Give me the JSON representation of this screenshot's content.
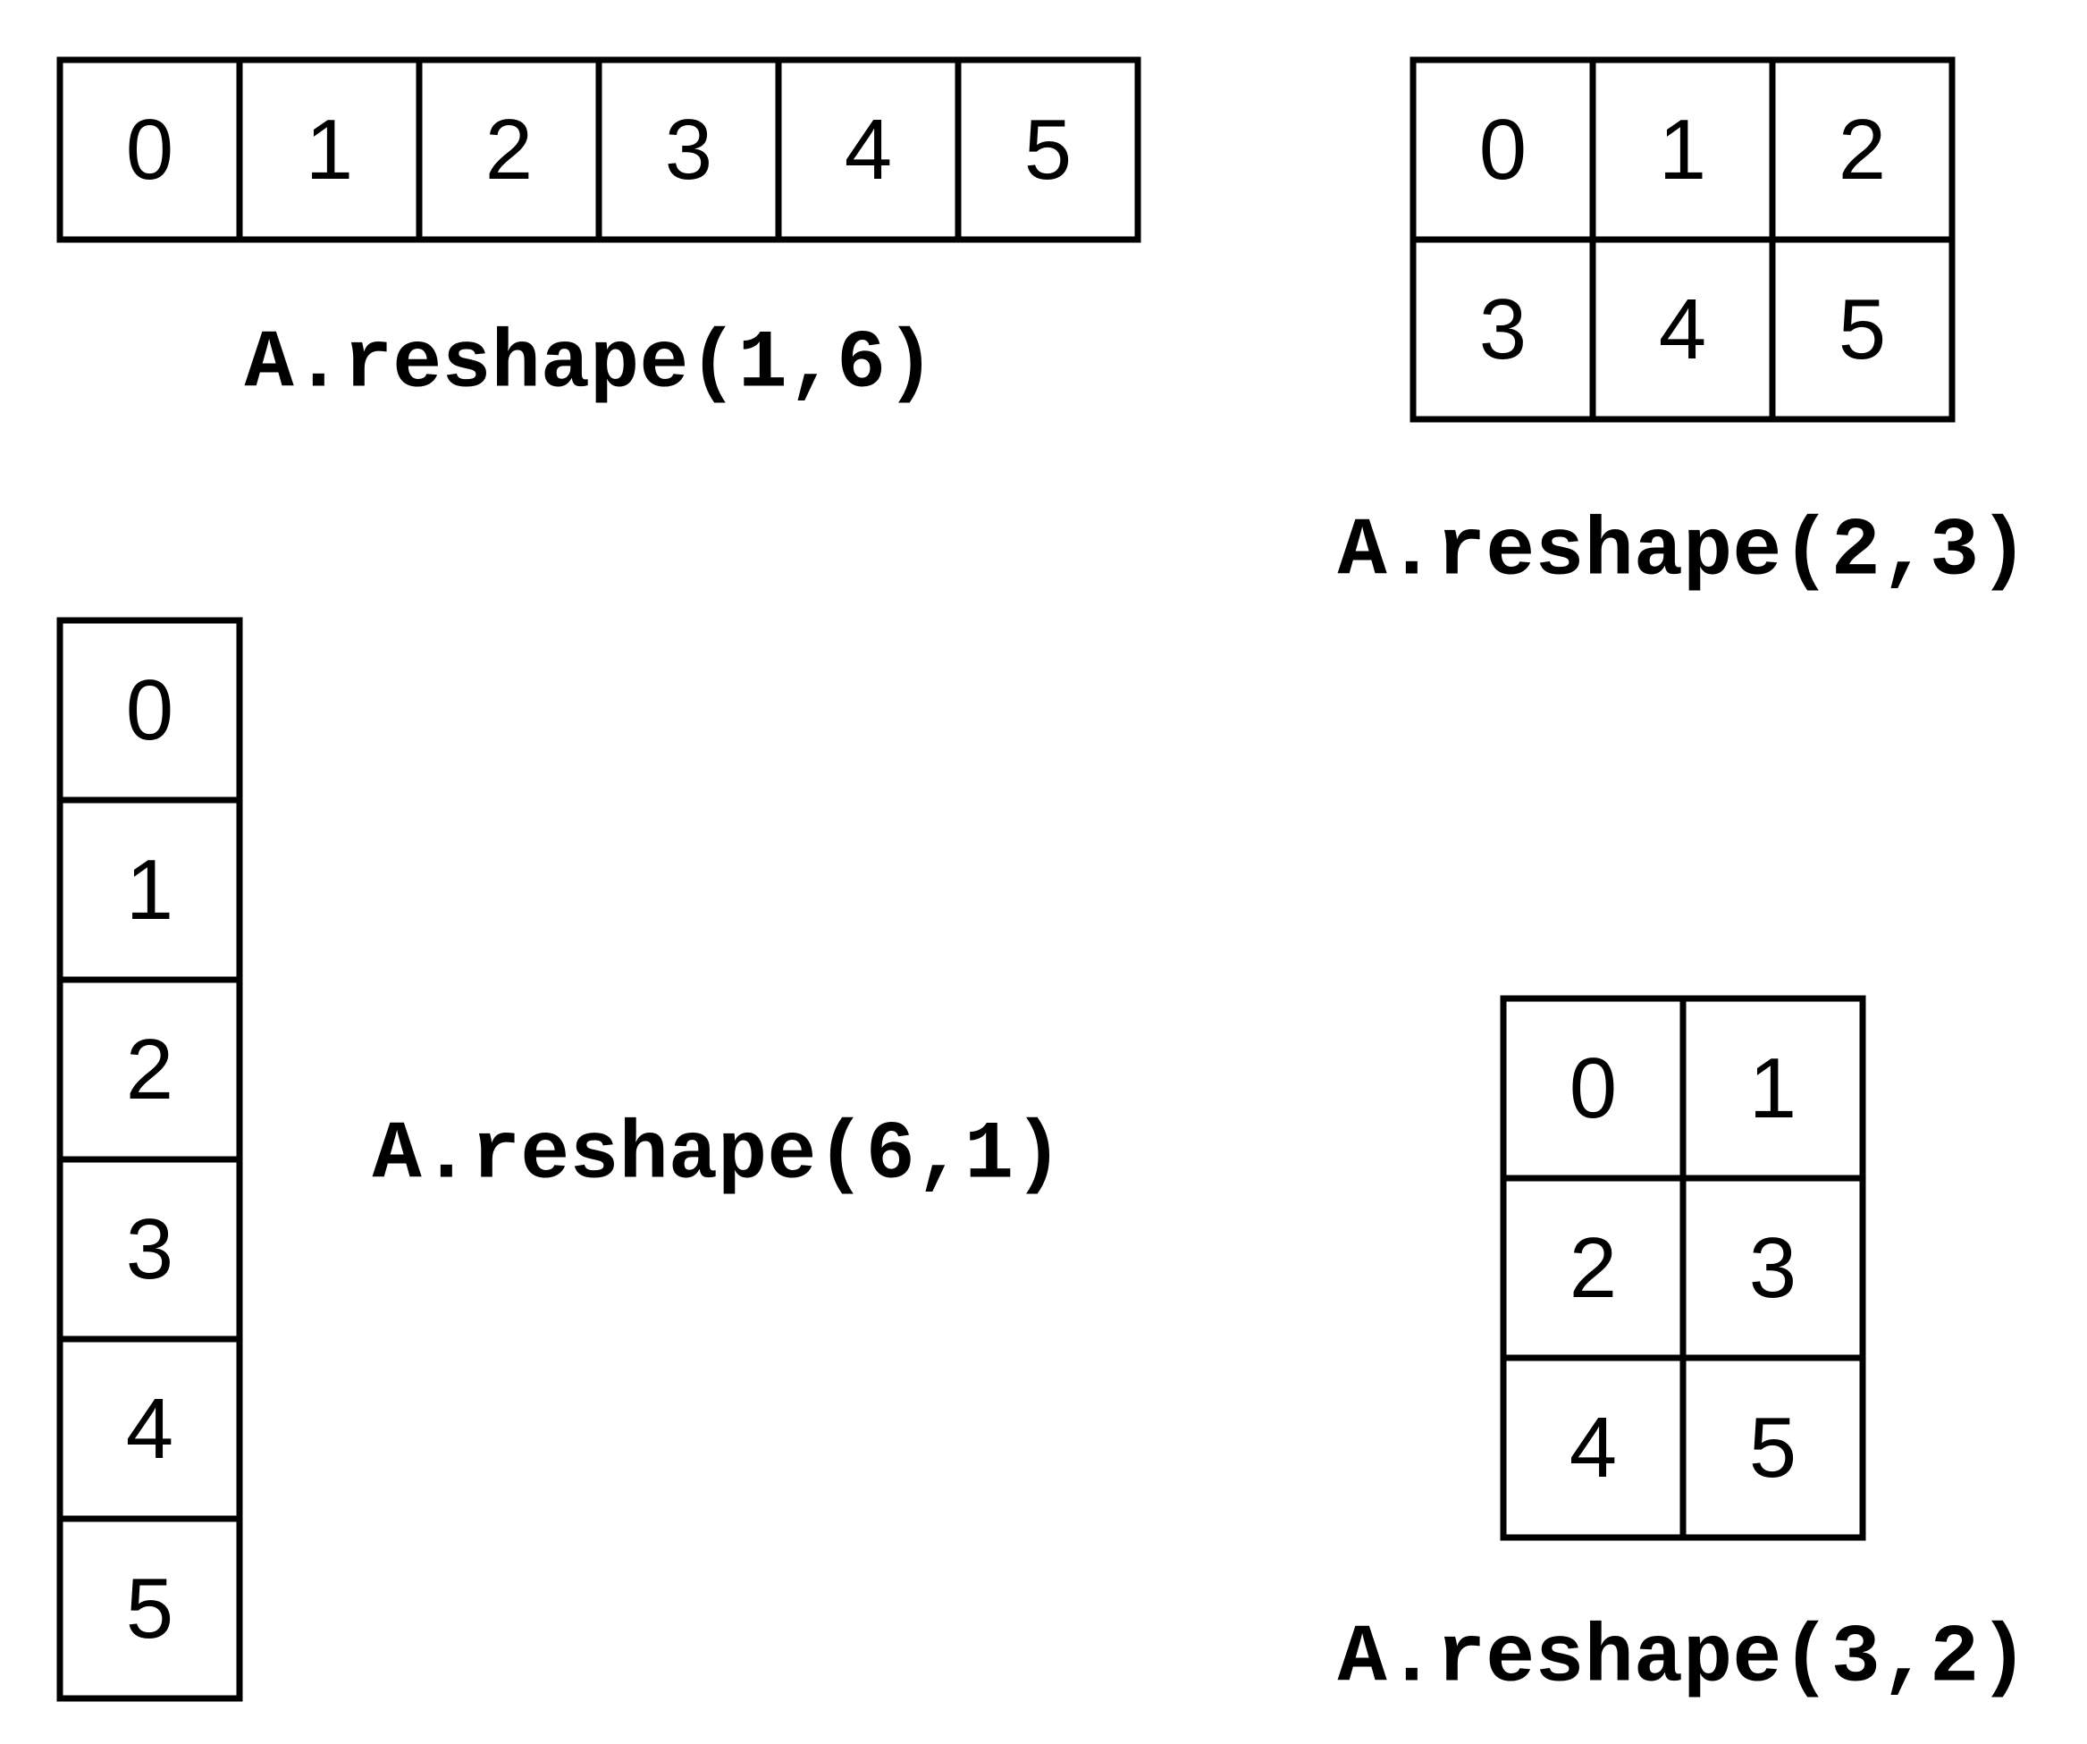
{
  "colors": {
    "background": "#ffffff",
    "stroke": "#000000",
    "text": "#000000"
  },
  "grids": [
    {
      "id": "reshape-1-6",
      "rows": 1,
      "cols": 6,
      "values": [
        "0",
        "1",
        "2",
        "3",
        "4",
        "5"
      ],
      "caption": "A.reshape(1,6)"
    },
    {
      "id": "reshape-2-3",
      "rows": 2,
      "cols": 3,
      "values": [
        "0",
        "1",
        "2",
        "3",
        "4",
        "5"
      ],
      "caption": "A.reshape(2,3)"
    },
    {
      "id": "reshape-6-1",
      "rows": 6,
      "cols": 1,
      "values": [
        "0",
        "1",
        "2",
        "3",
        "4",
        "5"
      ],
      "caption": "A.reshape(6,1)"
    },
    {
      "id": "reshape-3-2",
      "rows": 3,
      "cols": 2,
      "values": [
        "0",
        "1",
        "2",
        "3",
        "4",
        "5"
      ],
      "caption": "A.reshape(3,2)"
    }
  ]
}
